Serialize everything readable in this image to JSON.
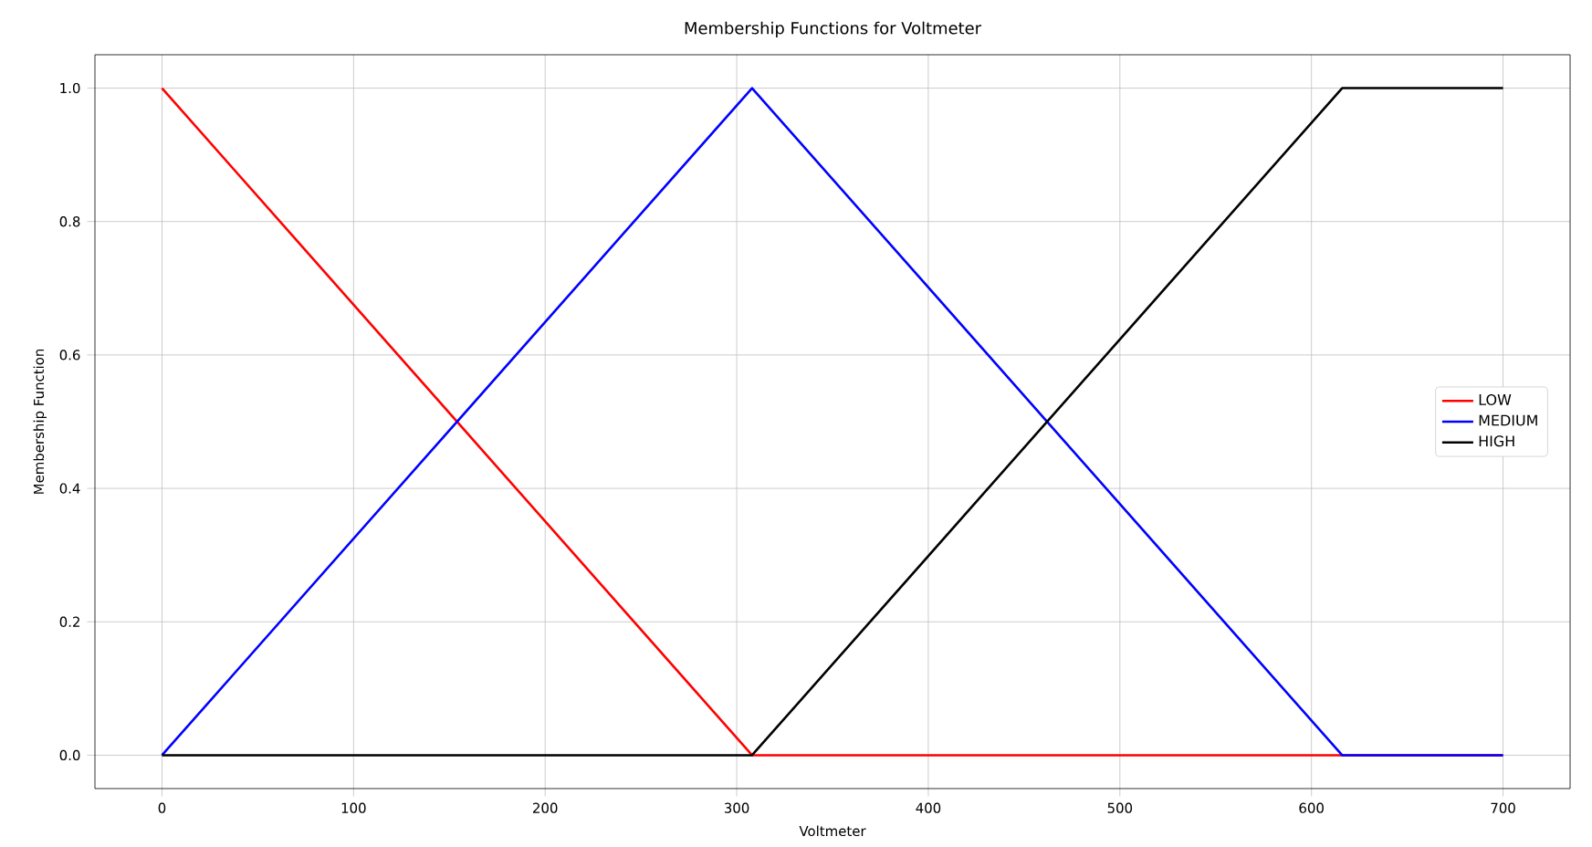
{
  "chart_data": {
    "type": "line",
    "title": "Membership Functions for Voltmeter",
    "xlabel": "Voltmeter",
    "ylabel": "Membership Function",
    "x": [
      0,
      308,
      616,
      700
    ],
    "series": [
      {
        "name": "LOW",
        "color": "#ff0000",
        "values": [
          1,
          0,
          0,
          0
        ]
      },
      {
        "name": "MEDIUM",
        "color": "#0000ff",
        "values": [
          0,
          1,
          0,
          0
        ]
      },
      {
        "name": "HIGH",
        "color": "#000000",
        "values": [
          0,
          0,
          1,
          1
        ]
      }
    ],
    "xlim": [
      -35,
      735
    ],
    "ylim": [
      -0.05,
      1.05
    ],
    "xticks": [
      0,
      100,
      200,
      300,
      400,
      500,
      600,
      700
    ],
    "yticks": [
      {
        "value": 0,
        "label": "0.0"
      },
      0.2,
      0.4,
      0.6,
      0.8,
      {
        "value": 1,
        "label": "1.0"
      }
    ],
    "grid": true,
    "legend": "right",
    "marker": "none",
    "line_style": "solid"
  }
}
